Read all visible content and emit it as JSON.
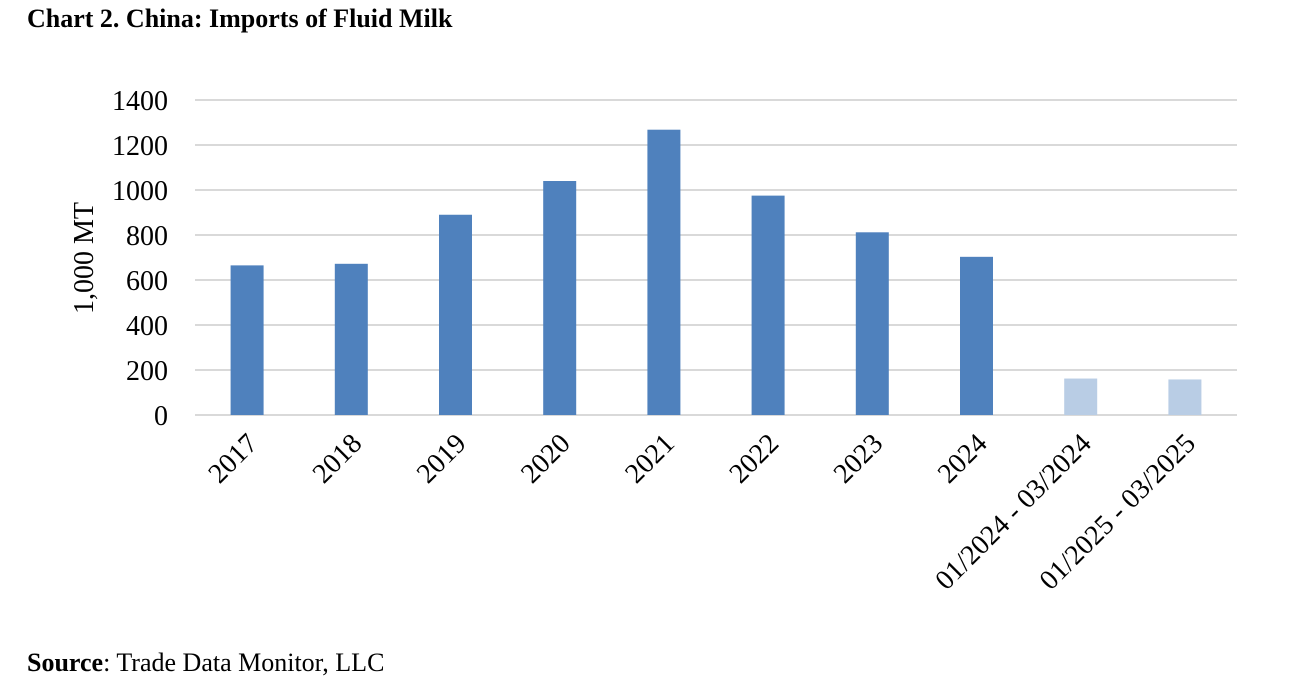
{
  "title": "Chart 2. China: Imports of Fluid Milk",
  "source": {
    "label": "Source",
    "text": ": Trade Data Monitor, LLC"
  },
  "colors": {
    "bar_dark": "#4F81BD",
    "bar_light": "#B9CDE5",
    "grid": "#D9D9D9"
  },
  "chart_data": {
    "type": "bar",
    "categories": [
      "2017",
      "2018",
      "2019",
      "2020",
      "2021",
      "2022",
      "2023",
      "2024",
      "01/2024 - 03/2024",
      "01/2025 - 03/2025"
    ],
    "values": [
      665,
      672,
      890,
      1040,
      1268,
      975,
      812,
      703,
      162,
      158
    ],
    "bar_colors": [
      "#4F81BD",
      "#4F81BD",
      "#4F81BD",
      "#4F81BD",
      "#4F81BD",
      "#4F81BD",
      "#4F81BD",
      "#4F81BD",
      "#B9CDE5",
      "#B9CDE5"
    ],
    "ylabel": "1,000 MT",
    "xlabel": "",
    "ylim": [
      0,
      1400
    ],
    "yticks": [
      0,
      200,
      400,
      600,
      800,
      1000,
      1200,
      1400
    ],
    "grid": true,
    "legend": "none"
  }
}
